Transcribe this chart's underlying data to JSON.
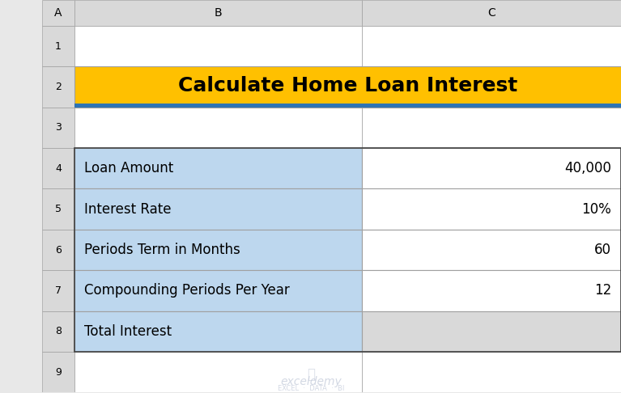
{
  "title": "Calculate Home Loan Interest",
  "title_bg": "#FFC000",
  "title_text_color": "#000000",
  "title_fontsize": 18,
  "rows": [
    {
      "label": "Loan Amount",
      "value": "40,000",
      "value_bg": "#FFFFFF",
      "label_bg": "#BDD7EE"
    },
    {
      "label": "Interest Rate",
      "value": "10%",
      "value_bg": "#FFFFFF",
      "label_bg": "#BDD7EE"
    },
    {
      "label": "Periods Term in Months",
      "value": "60",
      "value_bg": "#FFFFFF",
      "label_bg": "#BDD7EE"
    },
    {
      "label": "Compounding Periods Per Year",
      "value": "12",
      "value_bg": "#FFFFFF",
      "label_bg": "#BDD7EE"
    },
    {
      "label": "Total Interest",
      "value": "",
      "value_bg": "#D9D9D9",
      "label_bg": "#BDD7EE"
    }
  ],
  "col_header_bg": "#D9D9D9",
  "col_header_text": "#000000",
  "spreadsheet_bg": "#FFFFFF",
  "outer_bg": "#E8E8E8",
  "row_header_bg": "#D9D9D9",
  "row_header_text": "#000000",
  "grid_color": "#A0A0A0",
  "col_labels": [
    "A",
    "B",
    "C"
  ],
  "row_labels": [
    "1",
    "2",
    "3",
    "4",
    "5",
    "6",
    "7",
    "8",
    "9"
  ],
  "accent_line_color": "#2E74B5",
  "label_fontsize": 12,
  "value_fontsize": 12,
  "watermark_main": "exceldemy",
  "watermark_sub": "EXCEL  ·  DATA  ·  BI",
  "watermark_color": "#C0C8D8"
}
